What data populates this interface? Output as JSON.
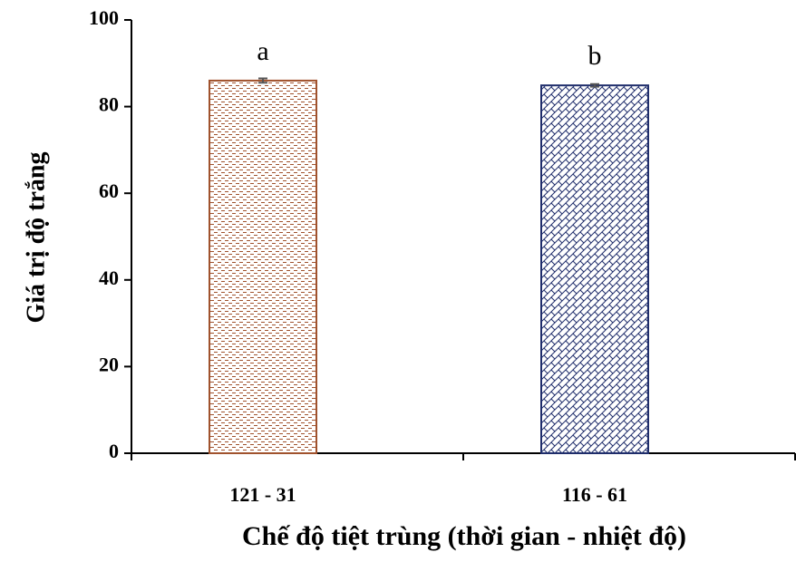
{
  "chart_data": {
    "type": "bar",
    "x_label": "Chế độ tiệt trùng (thời gian - nhiệt độ)",
    "y_label": "Giá trị độ trắng",
    "categories": [
      "121 - 31",
      "116 - 61"
    ],
    "values": [
      86.0,
      84.9
    ],
    "errors": [
      0.5,
      0.3
    ],
    "annotations": [
      "a",
      "b"
    ],
    "colors": [
      "#a0522d",
      "#1f2d6b"
    ],
    "patterns": [
      "dashes",
      "crosshatch"
    ],
    "ylim": [
      0,
      100
    ],
    "yticks": [
      0,
      20,
      40,
      60,
      80,
      100
    ],
    "grid": false
  }
}
